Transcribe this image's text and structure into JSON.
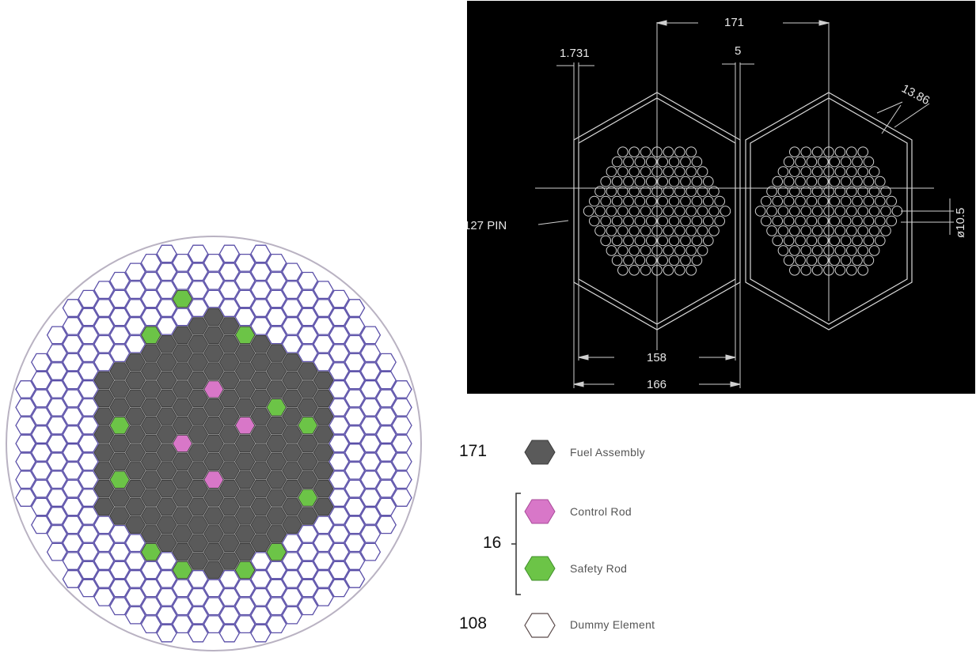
{
  "core_map": {
    "colors": {
      "fuel": "#5a5a5a",
      "control": "#d877c8",
      "safety": "#6cc447",
      "dummy": "#ffffff",
      "dummy_stroke": "#5a4fa8",
      "fuel_stroke": "#3b3b3b",
      "vessel": "#b9b2c2"
    }
  },
  "drawing": {
    "dim_top": "171",
    "dim_pitch_gap": "5",
    "dim_wall": "1.731",
    "dim_flat_inner": "13.86",
    "dim_pin_dia": "ø10.5",
    "pin_label": "127 PIN",
    "dim_inner_width": "158",
    "dim_outer_width": "166"
  },
  "legend": {
    "items": [
      {
        "count": "171",
        "label": "Fuel Assembly",
        "type": "fuel"
      },
      {
        "count": "",
        "label": "Control Rod",
        "type": "control"
      },
      {
        "count": "",
        "label": "Safety Rod",
        "type": "safety"
      },
      {
        "count": "108",
        "label": "Dummy Element",
        "type": "dummy"
      }
    ],
    "rod_group_count": "16"
  }
}
